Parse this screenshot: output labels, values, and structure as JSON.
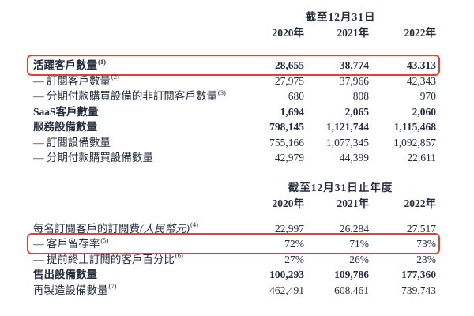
{
  "page": {
    "background": "#ffffff",
    "text_color": "#252c3d",
    "highlight_color": "#e0423a"
  },
  "table1": {
    "period_header": "截至12月31日",
    "years": [
      "2020年",
      "2021年",
      "2022年"
    ],
    "rows": [
      {
        "label": "活躍客戶數量",
        "sup": "(1)",
        "values": [
          "28,655",
          "38,774",
          "43,313"
        ],
        "bold": true,
        "highlighted": true
      },
      {
        "label": "— 訂閱客戶數量",
        "sup": "(2)",
        "values": [
          "27,975",
          "37,966",
          "42,343"
        ]
      },
      {
        "label": "— 分期付款購買設備的非訂閱客戶數量",
        "sup": "(3)",
        "values": [
          "680",
          "808",
          "970"
        ]
      },
      {
        "label": "SaaS客戶數量",
        "values": [
          "1,694",
          "2,065",
          "2,060"
        ],
        "bold": true
      },
      {
        "label": "服務設備數量",
        "values": [
          "798,145",
          "1,121,744",
          "1,115,468"
        ],
        "bold": true
      },
      {
        "label": "— 訂閱設備數量",
        "values": [
          "755,166",
          "1,077,345",
          "1,092,857"
        ]
      },
      {
        "label": "— 分期付款購買設備數量",
        "values": [
          "42,979",
          "44,399",
          "22,611"
        ]
      }
    ]
  },
  "table2": {
    "period_header": "截至12月31日止年度",
    "years": [
      "2020年",
      "2021年",
      "2022年"
    ],
    "rows": [
      {
        "label": "每名訂閱客戶的訂閱費",
        "label_italic": "(人民幣元)",
        "sup": "(4)",
        "values": [
          "22,997",
          "26,284",
          "27,517"
        ]
      },
      {
        "label": "— 客戶留存率",
        "sup": "(5)",
        "values": [
          "72%",
          "71%",
          "73%"
        ],
        "highlighted": true
      },
      {
        "label": "— 提前終止訂閱的客戶百分比",
        "sup": "(6)",
        "values": [
          "27%",
          "26%",
          "23%"
        ]
      },
      {
        "label": "售出設備數量",
        "values": [
          "100,293",
          "109,786",
          "177,360"
        ],
        "bold": true
      },
      {
        "label": "再製造設備數量",
        "sup": "(7)",
        "values": [
          "462,491",
          "608,461",
          "739,743"
        ]
      }
    ]
  }
}
